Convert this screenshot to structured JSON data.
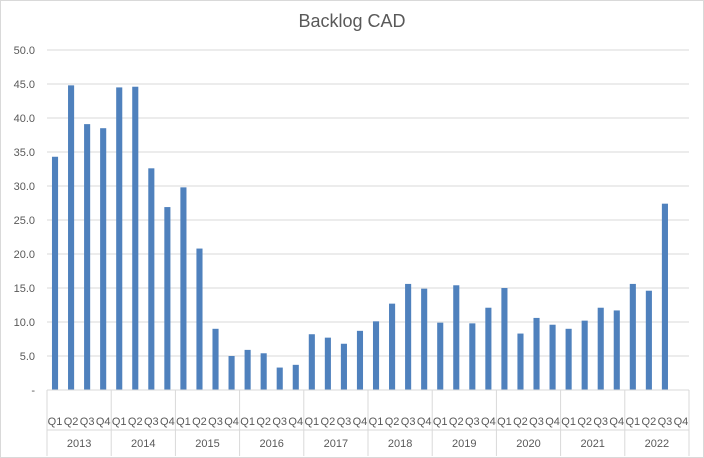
{
  "chart_data": {
    "type": "bar",
    "title": "Backlog CAD",
    "xlabel": "",
    "ylabel": "",
    "ylim": [
      0,
      50
    ],
    "y_ticks": [
      "-",
      "5.0",
      "10.0",
      "15.0",
      "20.0",
      "25.0",
      "30.0",
      "35.0",
      "40.0",
      "45.0",
      "50.0"
    ],
    "grid": true,
    "legend": "none",
    "bar_color": "#4f81bd",
    "quarters": [
      "Q1",
      "Q2",
      "Q3",
      "Q4"
    ],
    "years": [
      "2013",
      "2014",
      "2015",
      "2016",
      "2017",
      "2018",
      "2019",
      "2020",
      "2021",
      "2022"
    ],
    "categories": [
      "2013 Q1",
      "2013 Q2",
      "2013 Q3",
      "2013 Q4",
      "2014 Q1",
      "2014 Q2",
      "2014 Q3",
      "2014 Q4",
      "2015 Q1",
      "2015 Q2",
      "2015 Q3",
      "2015 Q4",
      "2016 Q1",
      "2016 Q2",
      "2016 Q3",
      "2016 Q4",
      "2017 Q1",
      "2017 Q2",
      "2017 Q3",
      "2017 Q4",
      "2018 Q1",
      "2018 Q2",
      "2018 Q3",
      "2018 Q4",
      "2019 Q1",
      "2019 Q2",
      "2019 Q3",
      "2019 Q4",
      "2020 Q1",
      "2020 Q2",
      "2020 Q3",
      "2020 Q4",
      "2021 Q1",
      "2021 Q2",
      "2021 Q3",
      "2021 Q4",
      "2022 Q1",
      "2022 Q2",
      "2022 Q3",
      "2022 Q4"
    ],
    "values": [
      34.3,
      44.8,
      39.1,
      38.5,
      44.5,
      44.6,
      32.6,
      26.9,
      29.8,
      20.8,
      9.0,
      5.0,
      5.9,
      5.4,
      3.3,
      3.7,
      8.2,
      7.7,
      6.8,
      8.7,
      10.1,
      12.7,
      15.6,
      14.9,
      9.9,
      15.4,
      9.8,
      12.1,
      15.0,
      8.3,
      10.6,
      9.6,
      9.0,
      10.2,
      12.1,
      11.7,
      15.6,
      14.6,
      27.4,
      null
    ]
  }
}
